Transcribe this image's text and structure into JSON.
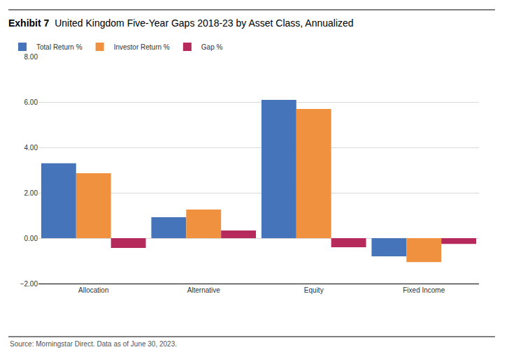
{
  "chart_data": {
    "type": "bar",
    "exhibit": "Exhibit 7",
    "title": "United Kingdom Five-Year Gaps 2018-23 by Asset Class, Annualized",
    "annotations": [
      "Source: Morningstar Direct. Data as of June 30, 2023."
    ],
    "categories": [
      "Allocation",
      "Alternative",
      "Equity",
      "Fixed Income"
    ],
    "series": [
      {
        "name": "Total Return %",
        "color": "#4674bb",
        "values": [
          3.3,
          0.92,
          6.09,
          -0.8
        ]
      },
      {
        "name": "Investor Return %",
        "color": "#f0913f",
        "values": [
          2.86,
          1.26,
          5.69,
          -1.05
        ]
      },
      {
        "name": "Gap %",
        "color": "#b52a5b",
        "values": [
          -0.43,
          0.34,
          -0.4,
          -0.25
        ]
      }
    ],
    "ylim": [
      -2,
      8
    ],
    "yticks": [
      {
        "value": -2,
        "label": "−2.00"
      },
      {
        "value": 0,
        "label": "0.00"
      },
      {
        "value": 2,
        "label": "2.00"
      },
      {
        "value": 4,
        "label": "4.00"
      },
      {
        "value": 6,
        "label": "6.00"
      },
      {
        "value": 8,
        "label": "8.00"
      }
    ],
    "grid": true,
    "legend": "top left"
  }
}
